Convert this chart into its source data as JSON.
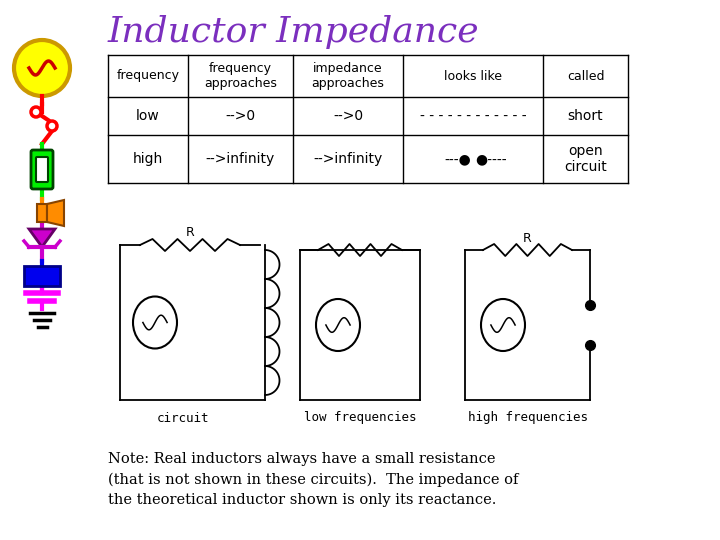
{
  "title": "Inductor Impedance",
  "title_color": "#7B2FBE",
  "title_fontsize": 26,
  "bg_color": "#FFFFFF",
  "table_headers": [
    "frequency",
    "frequency\napproaches",
    "impedance\napproaches",
    "looks like",
    "called"
  ],
  "table_row1": [
    "low",
    "-->0",
    "-->0",
    "- - - - - - - - - - - -",
    "short"
  ],
  "table_row2_col0": "high",
  "table_row2_col1": "-->infinity",
  "table_row2_col2": "-->infinity",
  "table_row2_col4": "open\ncircuit",
  "note_text": "Note: Real inductors always have a small resistance\n(that is not shown in these circuits).  The impedance of\nthe theoretical inductor shown is only its reactance.",
  "circuit_labels": [
    "circuit",
    "low frequencies",
    "high frequencies"
  ],
  "yellow_color": "#FFFF00",
  "red_color": "#FF0000",
  "green_color": "#00EE00",
  "orange_color": "#FF8C00",
  "purple_color": "#CC00CC",
  "blue_color": "#0000EE",
  "magenta_color": "#FF00FF",
  "black_color": "#000000"
}
